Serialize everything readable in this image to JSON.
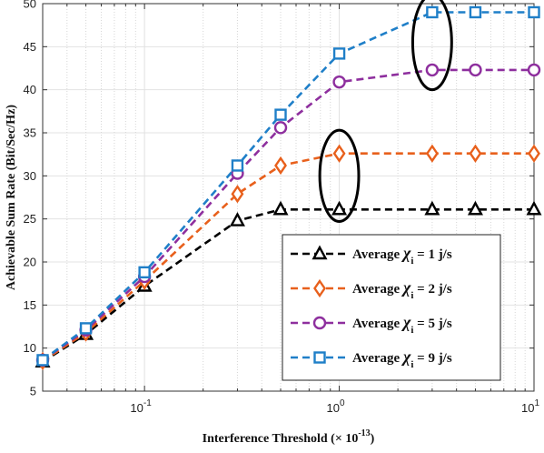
{
  "chart_data": {
    "type": "line",
    "xscale": "log",
    "xlim": [
      0.03,
      10
    ],
    "ylim": [
      5,
      50
    ],
    "y_ticks": [
      5,
      10,
      15,
      20,
      25,
      30,
      35,
      40,
      45,
      50
    ],
    "x_tick_labels": [
      {
        "value": 0.1,
        "base": "10",
        "exp": "-1"
      },
      {
        "value": 1,
        "base": "10",
        "exp": "0"
      },
      {
        "value": 10,
        "base": "10",
        "exp": "1"
      }
    ],
    "xlabel": {
      "main": "Interference Threshold (× 10",
      "exp": "-13",
      "close": ")"
    },
    "ylabel": "Achievable Sum Rate (Bit/Sec/Hz)",
    "grid": true,
    "legend_position": "bottom-right",
    "x": [
      0.03,
      0.05,
      0.1,
      0.3,
      0.5,
      1,
      3,
      5,
      10
    ],
    "series": [
      {
        "legend_prefix": "Average ",
        "symbol": "χ",
        "subscript": "i",
        "legend_suffix": " = 1 j/s",
        "color": "#000000",
        "marker": "triangle",
        "values": [
          8.4,
          11.6,
          17.2,
          24.8,
          26.1,
          26.1,
          26.1,
          26.1,
          26.1
        ]
      },
      {
        "legend_prefix": "Average ",
        "symbol": "χ",
        "subscript": "i",
        "legend_suffix": " = 2 j/s",
        "color": "#e8601c",
        "marker": "diamond",
        "values": [
          8.5,
          11.8,
          17.8,
          27.9,
          31.2,
          32.6,
          32.6,
          32.6,
          32.6
        ]
      },
      {
        "legend_prefix": "Average ",
        "symbol": "χ",
        "subscript": "i",
        "legend_suffix": " = 5 j/s",
        "color": "#8e2f9e",
        "marker": "circle",
        "values": [
          8.6,
          12.1,
          18.3,
          30.3,
          35.6,
          40.9,
          42.3,
          42.3,
          42.3
        ]
      },
      {
        "legend_prefix": "Average ",
        "symbol": "χ",
        "subscript": "i",
        "legend_suffix": " = 9 j/s",
        "color": "#1f7fc8",
        "marker": "square",
        "values": [
          8.6,
          12.3,
          18.8,
          31.2,
          37.1,
          44.2,
          49.0,
          49.0,
          49.0
        ]
      }
    ],
    "annotations": [
      {
        "type": "ellipse",
        "cx": 1,
        "cy": 30,
        "rx_decades": 0.1,
        "ry": 5.3
      },
      {
        "type": "ellipse",
        "cx": 3,
        "cy": 45.5,
        "rx_decades": 0.1,
        "ry": 5.5
      }
    ]
  }
}
